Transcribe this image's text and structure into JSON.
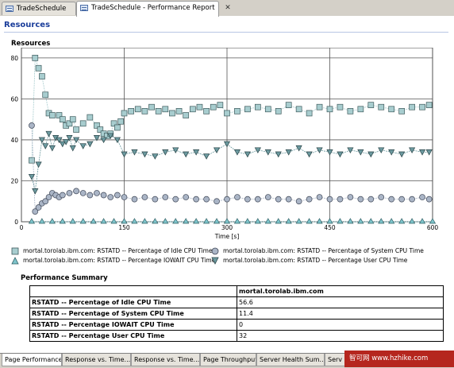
{
  "editor_tabs": [
    {
      "label": "TradeSchedule",
      "active": false
    },
    {
      "label": "TradeSchedule - Performance Report",
      "active": true,
      "close": "✕"
    }
  ],
  "page": {
    "section_title": "Resources"
  },
  "chart_data": {
    "type": "scatter",
    "title": "Resources",
    "xlabel": "Time [s]",
    "ylabel": "",
    "xlim": [
      0,
      600
    ],
    "ylim": [
      0,
      85
    ],
    "xticks": [
      0,
      150,
      300,
      450,
      600
    ],
    "yticks": [
      0,
      20,
      40,
      60,
      80
    ],
    "grid": true,
    "legend_position": "bottom",
    "series": [
      {
        "name": "mortal.torolab.ibm.com: RSTATD -- Percentage of Idle CPU Time",
        "marker": "square",
        "color": "#a8cdcf",
        "x": [
          15,
          20,
          25,
          30,
          35,
          40,
          45,
          55,
          60,
          65,
          70,
          75,
          80,
          90,
          100,
          110,
          115,
          120,
          125,
          130,
          135,
          140,
          145,
          150,
          160,
          170,
          180,
          190,
          200,
          210,
          220,
          230,
          240,
          250,
          260,
          270,
          280,
          290,
          300,
          315,
          330,
          345,
          360,
          375,
          390,
          405,
          420,
          435,
          450,
          465,
          480,
          495,
          510,
          525,
          540,
          555,
          570,
          585,
          595
        ],
        "y": [
          30,
          80,
          75,
          71,
          62,
          53,
          52,
          52,
          50,
          47,
          48,
          50,
          45,
          48,
          51,
          47,
          45,
          43,
          42,
          43,
          48,
          46,
          49,
          53,
          54,
          55,
          54,
          56,
          54,
          55,
          53,
          54,
          52,
          55,
          56,
          54,
          56,
          57,
          53,
          54,
          55,
          56,
          55,
          54,
          57,
          55,
          53,
          56,
          55,
          56,
          54,
          55,
          57,
          56,
          55,
          54,
          56,
          56,
          57
        ]
      },
      {
        "name": "mortal.torolab.ibm.com: RSTATD -- Percentage of System CPU Time",
        "marker": "circle",
        "color": "#aab5c6",
        "x": [
          15,
          20,
          25,
          30,
          35,
          40,
          45,
          50,
          55,
          60,
          70,
          80,
          90,
          100,
          110,
          120,
          130,
          140,
          150,
          165,
          180,
          195,
          210,
          225,
          240,
          255,
          270,
          285,
          300,
          315,
          330,
          345,
          360,
          375,
          390,
          405,
          420,
          435,
          450,
          465,
          480,
          495,
          510,
          525,
          540,
          555,
          570,
          585,
          595
        ],
        "y": [
          47,
          5,
          7,
          9,
          10,
          12,
          14,
          13,
          12,
          13,
          14,
          15,
          14,
          13,
          14,
          13,
          12,
          13,
          12,
          11,
          12,
          11,
          12,
          11,
          12,
          11,
          11,
          10,
          11,
          12,
          11,
          11,
          12,
          11,
          11,
          10,
          11,
          12,
          11,
          11,
          12,
          11,
          11,
          12,
          11,
          11,
          11,
          12,
          11
        ]
      },
      {
        "name": "mortal.torolab.ibm.com: RSTATD -- Percentage IOWAIT CPU Time",
        "marker": "triangle-up",
        "color": "#7ec4cb",
        "x": [
          15,
          30,
          45,
          60,
          75,
          90,
          105,
          120,
          135,
          150,
          165,
          180,
          195,
          210,
          225,
          240,
          255,
          270,
          285,
          300,
          315,
          330,
          345,
          360,
          375,
          390,
          405,
          420,
          435,
          450,
          465,
          480,
          495,
          510,
          525,
          540,
          555,
          570,
          585,
          600
        ],
        "y": [
          0,
          0,
          0,
          0,
          0,
          0,
          0,
          0,
          0,
          0,
          0,
          0,
          0,
          0,
          0,
          0,
          0,
          0,
          0,
          0,
          0,
          0,
          0,
          0,
          0,
          0,
          0,
          0,
          0,
          0,
          0,
          0,
          0,
          0,
          0,
          0,
          0,
          0,
          0,
          0
        ]
      },
      {
        "name": "mortal.torolab.ibm.com: RSTATD -- Percentage User CPU Time",
        "marker": "triangle-down",
        "color": "#6c9aa0",
        "x": [
          15,
          20,
          25,
          30,
          35,
          40,
          45,
          50,
          55,
          60,
          65,
          70,
          75,
          80,
          90,
          100,
          110,
          120,
          130,
          140,
          150,
          165,
          180,
          195,
          210,
          225,
          240,
          255,
          270,
          285,
          300,
          315,
          330,
          345,
          360,
          375,
          390,
          405,
          420,
          435,
          450,
          465,
          480,
          495,
          510,
          525,
          540,
          555,
          570,
          585,
          595
        ],
        "y": [
          22,
          15,
          28,
          40,
          37,
          43,
          36,
          41,
          40,
          38,
          39,
          41,
          36,
          40,
          37,
          38,
          41,
          40,
          42,
          40,
          33,
          34,
          33,
          32,
          34,
          35,
          33,
          34,
          32,
          35,
          38,
          34,
          33,
          35,
          34,
          33,
          34,
          36,
          33,
          35,
          34,
          33,
          35,
          34,
          33,
          35,
          34,
          33,
          35,
          34,
          34
        ]
      }
    ]
  },
  "summary": {
    "title": "Performance Summary",
    "column_header": "mortal.torolab.ibm.com",
    "rows": [
      {
        "label": "RSTATD -- Percentage of Idle CPU Time",
        "value": "56.6"
      },
      {
        "label": "RSTATD -- Percentage of System CPU Time",
        "value": "11.4"
      },
      {
        "label": "RSTATD -- Percentage IOWAIT CPU Time",
        "value": "0"
      },
      {
        "label": "RSTATD -- Percentage User CPU Time",
        "value": "32"
      }
    ]
  },
  "bottom_tabs": [
    {
      "label": "Page Performance"
    },
    {
      "label": "Response vs. Time..."
    },
    {
      "label": "Response vs. Time..."
    },
    {
      "label": "Page Throughput"
    },
    {
      "label": "Server Health Sum..."
    },
    {
      "label": "Serv"
    }
  ],
  "watermark": {
    "text": "智可网 www.hzhike.com",
    "color": "#b5261e"
  }
}
